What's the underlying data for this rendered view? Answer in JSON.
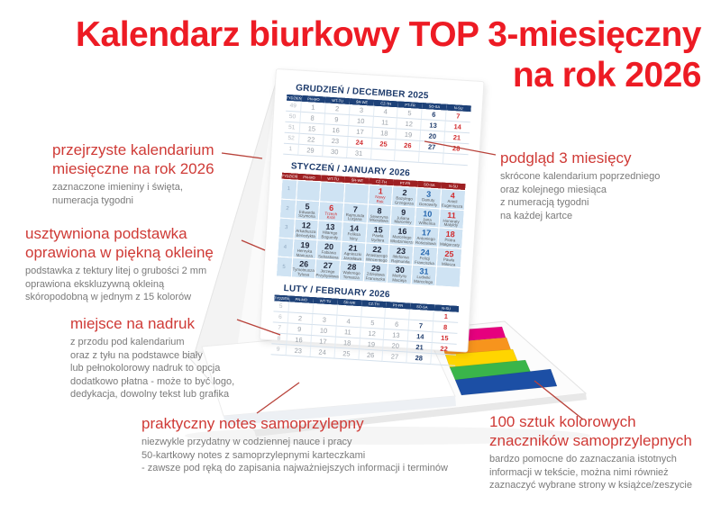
{
  "colors": {
    "title_red": "#ed1b24",
    "annotation_red": "#cf3a36",
    "navy": "#1c3a6b",
    "header_navy": "#1d4178",
    "header_maroon": "#9e2022",
    "jan_bg": "#cfe3f3",
    "saturday_blue": "#2566ae",
    "sunday_red": "#d12b2e",
    "callout_line": "#b8423a"
  },
  "title": {
    "line1": "Kalendarz biurkowy TOP 3-miesięczny",
    "line2": "na rok 2026"
  },
  "annotations": {
    "calendarium": {
      "heading": [
        "przejrzyste kalendarium",
        "miesięczne na rok 2026"
      ],
      "body": [
        "zaznaczone imieniny i święta,",
        "numeracja tygodni"
      ]
    },
    "podstawka": {
      "heading": [
        "usztywniona podstawka",
        "oprawiona w piękną okleinę"
      ],
      "body": [
        "podstawka z tektury litej o grubości 2 mm",
        "oprawiona ekskluzywną okleiną",
        "skóropodobną w jednym z 15 kolorów"
      ]
    },
    "nadruk": {
      "heading": [
        "miejsce na nadruk"
      ],
      "body": [
        "z przodu pod kalendarium",
        "oraz z tyłu na podstawce biały",
        "lub pełnokolorowy nadruk to opcja",
        "dodatkowo płatna - może to być logo,",
        "dedykacja, dowolny tekst lub grafika"
      ]
    },
    "notes": {
      "heading": [
        "praktyczny notes samoprzylepny"
      ],
      "body": [
        "niezwykle przydatny w codziennej nauce i pracy",
        "50-kartkowy notes z samoprzylepnymi karteczkami",
        "- zawsze pod ręką do zapisania najważniejszych informacji i terminów"
      ]
    },
    "podglad": {
      "heading": [
        "podgląd 3 miesięcy"
      ],
      "body": [
        "skrócone kalendarium poprzedniego",
        "oraz kolejnego miesiąca",
        "z numeracją tygodni",
        "na każdej kartce"
      ]
    },
    "znaczniki": {
      "heading": [
        "100 sztuk kolorowych",
        "znaczników samoprzylepnych"
      ],
      "body": [
        "bardzo pomocne do zaznaczania istotnych",
        "informacji w tekście, można nimi również",
        "zaznaczyć wybrane strony w książce/zeszycie"
      ]
    }
  },
  "calendar": {
    "week_label": "TYDZIEŃ",
    "day_headers": [
      "PN-MO",
      "WT-TU",
      "ŚR-WE",
      "CZ-TH",
      "PT-FR",
      "SO-SA",
      "N-SU"
    ],
    "december": {
      "title": "GRUDZIEŃ / DECEMBER 2025",
      "holidays": [
        24,
        25,
        26
      ],
      "weeks": [
        {
          "num": 49,
          "days": [
            1,
            2,
            3,
            4,
            5,
            6,
            7
          ]
        },
        {
          "num": 50,
          "days": [
            8,
            9,
            10,
            11,
            12,
            13,
            14
          ]
        },
        {
          "num": 51,
          "days": [
            15,
            16,
            17,
            18,
            19,
            20,
            21
          ]
        },
        {
          "num": 52,
          "days": [
            22,
            23,
            24,
            25,
            26,
            27,
            28
          ]
        },
        {
          "num": 1,
          "days": [
            29,
            30,
            31,
            null,
            null,
            null,
            null
          ]
        }
      ]
    },
    "january": {
      "title": "STYCZEŃ / JANUARY 2026",
      "holidays": [
        1,
        6
      ],
      "weeks": [
        {
          "num": 1,
          "days": [
            null,
            null,
            null,
            {
              "n": 1,
              "name": "Nowy Rok"
            },
            {
              "n": 2,
              "name": "Bazylego Grzegorza"
            },
            {
              "n": 3,
              "name": "Danuty Genowefy"
            },
            {
              "n": 4,
              "name": "Anieli Eugeniusza"
            }
          ]
        },
        {
          "num": 2,
          "days": [
            {
              "n": 5,
              "name": "Edwarda Szymona"
            },
            {
              "n": 6,
              "name": "Trzech Króli"
            },
            {
              "n": 7,
              "name": "Rajmunda Lucjana"
            },
            {
              "n": 8,
              "name": "Seweryna Mścisława"
            },
            {
              "n": 9,
              "name": "Juliana Marceliny"
            },
            {
              "n": 10,
              "name": "Jana Wilhelma"
            },
            {
              "n": 11,
              "name": "Honoraty Matyldy"
            }
          ]
        },
        {
          "num": 3,
          "days": [
            {
              "n": 12,
              "name": "Arkadiusza Benedykta"
            },
            {
              "n": 13,
              "name": "Hilarego Bogumiły"
            },
            {
              "n": 14,
              "name": "Feliksa Niny"
            },
            {
              "n": 15,
              "name": "Pawła Izydora"
            },
            {
              "n": 16,
              "name": "Marcelego Włodzimierza"
            },
            {
              "n": 17,
              "name": "Antoniego Rościsława"
            },
            {
              "n": 18,
              "name": "Piotra Małgorzaty"
            }
          ]
        },
        {
          "num": 4,
          "days": [
            {
              "n": 19,
              "name": "Henryka Mariusza"
            },
            {
              "n": 20,
              "name": "Fabiana Sebastiana"
            },
            {
              "n": 21,
              "name": "Agnieszki Jarosława"
            },
            {
              "n": 22,
              "name": "Anastazego Wincentego"
            },
            {
              "n": 23,
              "name": "Ildefonsa Rajmunda"
            },
            {
              "n": 24,
              "name": "Felicji Franciszka"
            },
            {
              "n": 25,
              "name": "Pawła Miłosza"
            }
          ]
        },
        {
          "num": 5,
          "days": [
            {
              "n": 26,
              "name": "Tymoteusza Tytusa"
            },
            {
              "n": 27,
              "name": "Jerzego Przybysława"
            },
            {
              "n": 28,
              "name": "Walerego Tomasza"
            },
            {
              "n": 29,
              "name": "Zdzisława Franciszka"
            },
            {
              "n": 30,
              "name": "Martyny Macieja"
            },
            {
              "n": 31,
              "name": "Ludwiki Marcelego"
            },
            null
          ]
        }
      ]
    },
    "february": {
      "title": "LUTY / FEBRUARY 2026",
      "holidays": [],
      "weeks": [
        {
          "num": 5,
          "days": [
            null,
            null,
            null,
            null,
            null,
            null,
            1
          ]
        },
        {
          "num": 6,
          "days": [
            2,
            3,
            4,
            5,
            6,
            7,
            8
          ]
        },
        {
          "num": 7,
          "days": [
            9,
            10,
            11,
            12,
            13,
            14,
            15
          ]
        },
        {
          "num": 8,
          "days": [
            16,
            17,
            18,
            19,
            20,
            21,
            22
          ]
        },
        {
          "num": 9,
          "days": [
            23,
            24,
            25,
            26,
            27,
            28,
            null
          ]
        }
      ]
    }
  },
  "markers": {
    "names": [
      "pink",
      "orange",
      "yellow",
      "green",
      "blue"
    ],
    "colors": [
      "#e6007e",
      "#f7941d",
      "#ffd500",
      "#3ab54a",
      "#1c4fa5"
    ]
  }
}
